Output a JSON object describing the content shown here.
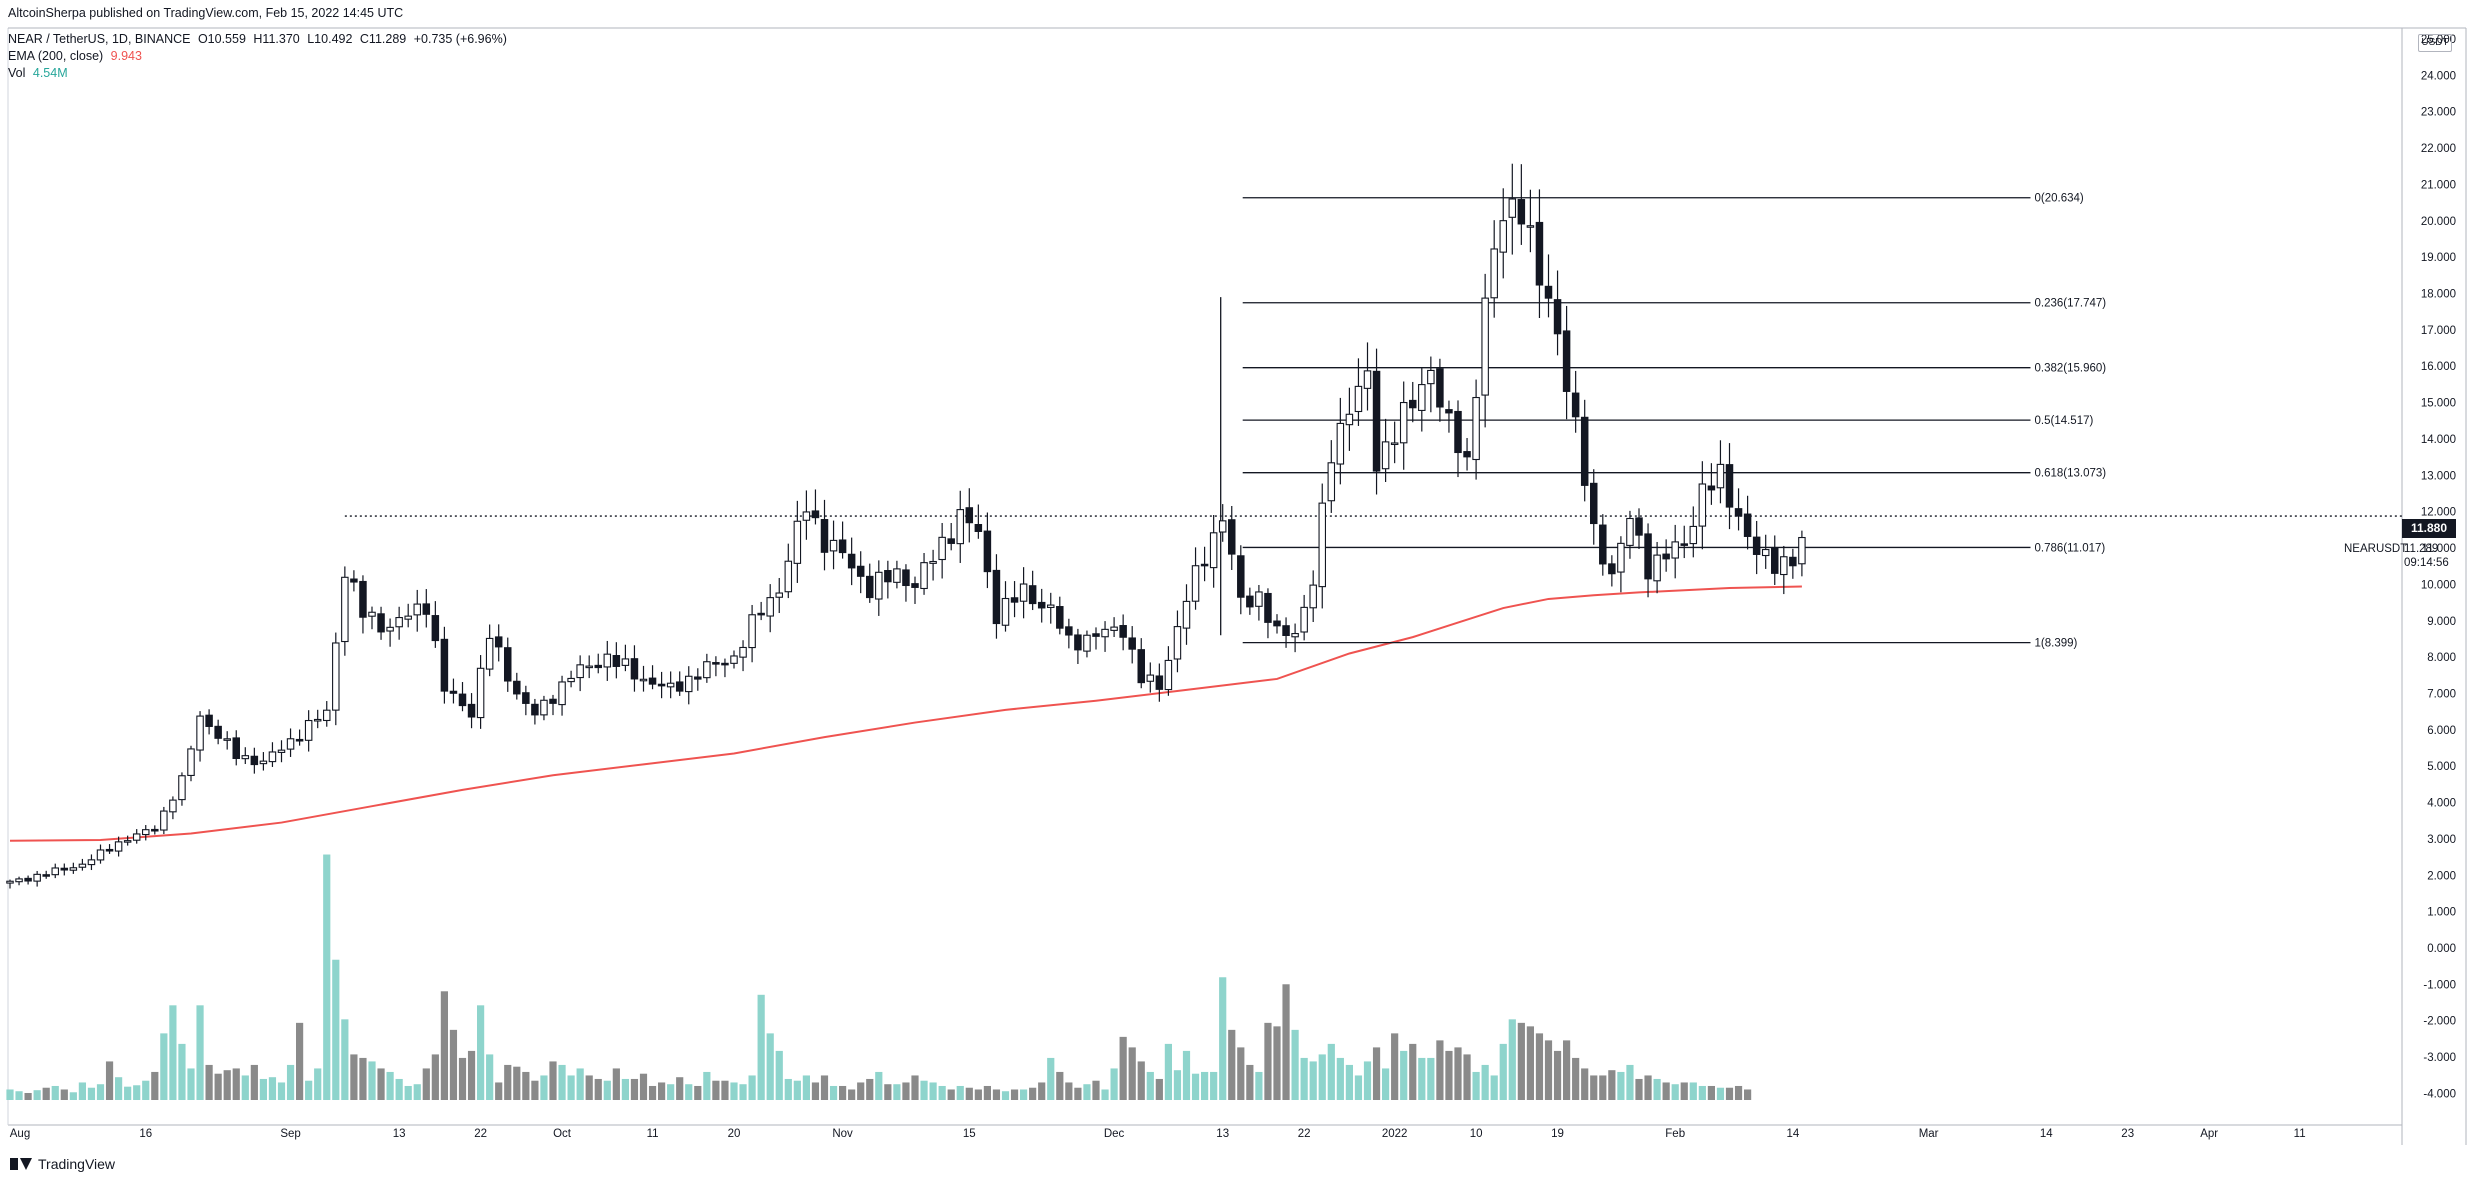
{
  "publisher": "AltcoinSherpa published on TradingView.com, Feb 15, 2022 14:45 UTC",
  "legend": {
    "symbol": "NEAR / TetherUS, 1D, BINANCE",
    "open": "O10.559",
    "high": "H11.370",
    "low": "L10.492",
    "close": "C11.289",
    "change": "+0.735 (+6.96%)",
    "ema_label": "EMA (200, close)",
    "ema_value": "9.943",
    "vol_label": "Vol",
    "vol_value": "4.54M"
  },
  "currency_badge": "USDT",
  "price_tags": {
    "horizontal_line": "11.880",
    "symbol": "NEARUSDT",
    "last_price": "11.289",
    "countdown": "09:14:56"
  },
  "footer_brand": "TradingView",
  "colors": {
    "up_candle": "#ffffff",
    "down_candle": "#131722",
    "ema": "#ef5350",
    "vol_up": "#8ed4cc",
    "vol_down": "#8a8a8a",
    "fib_line": "#131722",
    "dotted_line": "#131722"
  },
  "chart_data": {
    "type": "candlestick",
    "ylim": [
      -4.8,
      26
    ],
    "y_ticks": [
      "25.000",
      "24.000",
      "23.000",
      "22.000",
      "21.000",
      "20.000",
      "19.000",
      "18.000",
      "17.000",
      "16.000",
      "15.000",
      "14.000",
      "13.000",
      "12.000",
      "11.000",
      "10.000",
      "9.000",
      "8.000",
      "7.000",
      "6.000",
      "5.000",
      "4.000",
      "3.000",
      "2.000",
      "1.000",
      "0.000",
      "-1.000",
      "-2.000",
      "-3.000",
      "-4.000"
    ],
    "x_ticks": [
      {
        "label": "Aug",
        "day": 0
      },
      {
        "label": "16",
        "day": 15
      },
      {
        "label": "Sep",
        "day": 31
      },
      {
        "label": "13",
        "day": 43
      },
      {
        "label": "22",
        "day": 52
      },
      {
        "label": "Oct",
        "day": 61
      },
      {
        "label": "11",
        "day": 71
      },
      {
        "label": "20",
        "day": 80
      },
      {
        "label": "Nov",
        "day": 92
      },
      {
        "label": "15",
        "day": 106
      },
      {
        "label": "Dec",
        "day": 122
      },
      {
        "label": "13",
        "day": 134
      },
      {
        "label": "22",
        "day": 143
      },
      {
        "label": "2022",
        "day": 153
      },
      {
        "label": "10",
        "day": 162
      },
      {
        "label": "19",
        "day": 171
      },
      {
        "label": "Feb",
        "day": 184
      },
      {
        "label": "14",
        "day": 197
      },
      {
        "label": "Mar",
        "day": 212
      },
      {
        "label": "14",
        "day": 225
      },
      {
        "label": "23",
        "day": 234
      },
      {
        "label": "Apr",
        "day": 243
      },
      {
        "label": "11",
        "day": 253
      }
    ],
    "x_range_days": [
      0,
      262
    ],
    "closes_anchor": [
      [
        0,
        1.8
      ],
      [
        8,
        2.3
      ],
      [
        12,
        2.9
      ],
      [
        16,
        3.3
      ],
      [
        19,
        4.6
      ],
      [
        21,
        6.4
      ],
      [
        25,
        5.3
      ],
      [
        28,
        5.1
      ],
      [
        31,
        5.7
      ],
      [
        35,
        6.5
      ],
      [
        37,
        10.4
      ],
      [
        39,
        9.2
      ],
      [
        42,
        8.8
      ],
      [
        46,
        9.5
      ],
      [
        48,
        7.1
      ],
      [
        51,
        6.5
      ],
      [
        53,
        8.6
      ],
      [
        56,
        7.0
      ],
      [
        58,
        6.4
      ],
      [
        62,
        7.5
      ],
      [
        66,
        8.0
      ],
      [
        70,
        7.4
      ],
      [
        73,
        7.1
      ],
      [
        77,
        7.7
      ],
      [
        80,
        8.0
      ],
      [
        83,
        9.3
      ],
      [
        85,
        9.9
      ],
      [
        88,
        12.2
      ],
      [
        90,
        11.2
      ],
      [
        92,
        10.8
      ],
      [
        95,
        9.9
      ],
      [
        98,
        10.3
      ],
      [
        100,
        10.0
      ],
      [
        103,
        11.1
      ],
      [
        105,
        11.9
      ],
      [
        107,
        11.4
      ],
      [
        109,
        9.2
      ],
      [
        112,
        9.8
      ],
      [
        115,
        9.3
      ],
      [
        117,
        8.4
      ],
      [
        120,
        8.6
      ],
      [
        123,
        8.8
      ],
      [
        125,
        7.4
      ],
      [
        127,
        7.2
      ],
      [
        130,
        9.6
      ],
      [
        132,
        10.8
      ],
      [
        134,
        11.9
      ],
      [
        136,
        9.5
      ],
      [
        138,
        9.7
      ],
      [
        140,
        8.6
      ],
      [
        142,
        8.7
      ],
      [
        144,
        10.1
      ],
      [
        146,
        13.6
      ],
      [
        148,
        15.0
      ],
      [
        150,
        15.6
      ],
      [
        151,
        13.3
      ],
      [
        153,
        14.3
      ],
      [
        155,
        14.9
      ],
      [
        157,
        16.0
      ],
      [
        159,
        14.3
      ],
      [
        161,
        13.3
      ],
      [
        163,
        17.8
      ],
      [
        165,
        20.1
      ],
      [
        167,
        20.6
      ],
      [
        169,
        18.3
      ],
      [
        171,
        17.0
      ],
      [
        173,
        14.3
      ],
      [
        175,
        11.4
      ],
      [
        177,
        10.3
      ],
      [
        179,
        11.8
      ],
      [
        181,
        10.5
      ],
      [
        183,
        10.8
      ],
      [
        185,
        11.1
      ],
      [
        187,
        12.6
      ],
      [
        189,
        12.9
      ],
      [
        191,
        11.9
      ],
      [
        193,
        10.8
      ],
      [
        195,
        10.6
      ],
      [
        197,
        10.7
      ],
      [
        198,
        11.289
      ]
    ],
    "ema200": [
      [
        0,
        2.95
      ],
      [
        10,
        2.97
      ],
      [
        20,
        3.15
      ],
      [
        30,
        3.45
      ],
      [
        40,
        3.9
      ],
      [
        50,
        4.35
      ],
      [
        60,
        4.75
      ],
      [
        70,
        5.05
      ],
      [
        80,
        5.35
      ],
      [
        90,
        5.8
      ],
      [
        100,
        6.2
      ],
      [
        110,
        6.55
      ],
      [
        120,
        6.8
      ],
      [
        130,
        7.1
      ],
      [
        140,
        7.4
      ],
      [
        148,
        8.1
      ],
      [
        155,
        8.55
      ],
      [
        160,
        8.95
      ],
      [
        165,
        9.35
      ],
      [
        170,
        9.6
      ],
      [
        175,
        9.7
      ],
      [
        180,
        9.78
      ],
      [
        185,
        9.84
      ],
      [
        190,
        9.9
      ],
      [
        198,
        9.943
      ]
    ],
    "volume_series": [
      0.3,
      0.25,
      0.2,
      0.28,
      0.35,
      0.4,
      0.3,
      0.22,
      0.5,
      0.35,
      0.45,
      1.1,
      0.65,
      0.38,
      0.42,
      0.55,
      0.8,
      1.9,
      2.7,
      1.6,
      0.9,
      2.7,
      1.0,
      0.75,
      0.85,
      0.9,
      0.7,
      1.0,
      0.6,
      0.65,
      0.5,
      1.0,
      2.2,
      0.55,
      0.9,
      7.0,
      4.0,
      2.3,
      1.3,
      1.2,
      1.1,
      0.9,
      0.8,
      0.6,
      0.4,
      0.45,
      0.9,
      1.3,
      3.1,
      2.0,
      1.2,
      1.4,
      2.7,
      1.3,
      0.5,
      1.0,
      0.95,
      0.8,
      0.55,
      0.7,
      1.1,
      1.0,
      0.7,
      0.9,
      0.7,
      0.6,
      0.55,
      0.9,
      0.6,
      0.6,
      0.75,
      0.4,
      0.5,
      0.45,
      0.65,
      0.45,
      0.4,
      0.8,
      0.55,
      0.55,
      0.5,
      0.45,
      0.7,
      3.0,
      1.9,
      1.4,
      0.6,
      0.55,
      0.7,
      0.5,
      0.7,
      0.4,
      0.4,
      0.3,
      0.5,
      0.6,
      0.8,
      0.45,
      0.45,
      0.5,
      0.7,
      0.55,
      0.5,
      0.4,
      0.3,
      0.4,
      0.35,
      0.3,
      0.4,
      0.3,
      0.25,
      0.3,
      0.3,
      0.35,
      0.5,
      1.2,
      0.8,
      0.5,
      0.35,
      0.45,
      0.55,
      0.3,
      0.9,
      1.8,
      1.5,
      1.1,
      0.8,
      0.6,
      1.6,
      0.85,
      1.4,
      0.75,
      0.8,
      0.8,
      3.5,
      2.0,
      1.5,
      1.0,
      0.8,
      2.2,
      2.1,
      3.3,
      2.0,
      1.2,
      1.1,
      1.3,
      1.6,
      1.2,
      1.0,
      0.7,
      1.1,
      1.5,
      0.9,
      1.9,
      1.4,
      1.6,
      1.2,
      1.2,
      1.7,
      1.4,
      1.5,
      1.3,
      0.8,
      1.0,
      0.7,
      1.6,
      2.3,
      2.2,
      2.1,
      1.9,
      1.7,
      1.4,
      1.7,
      1.2,
      0.9,
      0.7,
      0.7,
      0.85,
      0.8,
      1.0,
      0.6,
      0.7,
      0.6,
      0.5,
      0.45,
      0.5,
      0.5,
      0.4,
      0.4,
      0.35,
      0.35,
      0.4,
      0.3
    ],
    "volume_axis_max": 7.3,
    "fibonacci": [
      {
        "label": "0(20.634)",
        "price": 20.634
      },
      {
        "label": "0.236(17.747)",
        "price": 17.747
      },
      {
        "label": "0.382(15.960)",
        "price": 15.96
      },
      {
        "label": "0.5(14.517)",
        "price": 14.517
      },
      {
        "label": "0.618(13.073)",
        "price": 13.073
      },
      {
        "label": "0.786(11.017)",
        "price": 11.017
      },
      {
        "label": "1(8.399)",
        "price": 8.399
      }
    ],
    "fib_start_day": 134,
    "fib_end_day": 210,
    "dotted_line": {
      "price": 11.88,
      "start_day": 37
    },
    "spike_wick": {
      "day": 134,
      "high": 17.9,
      "low": 8.6
    },
    "last_candle_day": 198
  }
}
